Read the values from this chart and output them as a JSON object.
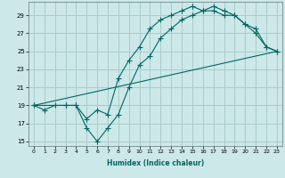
{
  "title": "",
  "xlabel": "Humidex (Indice chaleur)",
  "ylabel": "",
  "bg_color": "#cce8e8",
  "grid_color": "#aacccc",
  "line_color": "#006666",
  "xlim": [
    -0.5,
    23.5
  ],
  "ylim": [
    14.5,
    30.5
  ],
  "xticks": [
    0,
    1,
    2,
    3,
    4,
    5,
    6,
    7,
    8,
    9,
    10,
    11,
    12,
    13,
    14,
    15,
    16,
    17,
    18,
    19,
    20,
    21,
    22,
    23
  ],
  "yticks": [
    15,
    17,
    19,
    21,
    23,
    25,
    27,
    29
  ],
  "line1_x": [
    0,
    1,
    2,
    3,
    4,
    5,
    6,
    7,
    8,
    9,
    10,
    11,
    12,
    13,
    14,
    15,
    16,
    17,
    18,
    19,
    20,
    21,
    22,
    23
  ],
  "line1_y": [
    19.0,
    18.5,
    19.0,
    19.0,
    19.0,
    16.5,
    15.0,
    16.5,
    18.0,
    21.0,
    23.5,
    24.5,
    26.5,
    27.5,
    28.5,
    29.0,
    29.5,
    30.0,
    29.5,
    29.0,
    28.0,
    27.0,
    25.5,
    25.0
  ],
  "line2_x": [
    0,
    3,
    4,
    5,
    6,
    7,
    8,
    9,
    10,
    11,
    12,
    13,
    14,
    15,
    16,
    17,
    18,
    19,
    20,
    21,
    22,
    23
  ],
  "line2_y": [
    19.0,
    19.0,
    19.0,
    17.5,
    18.5,
    18.0,
    22.0,
    24.0,
    25.5,
    27.5,
    28.5,
    29.0,
    29.5,
    30.0,
    29.5,
    29.5,
    29.0,
    29.0,
    28.0,
    27.5,
    25.5,
    25.0
  ],
  "line3_x": [
    0,
    23
  ],
  "line3_y": [
    19.0,
    25.0
  ]
}
